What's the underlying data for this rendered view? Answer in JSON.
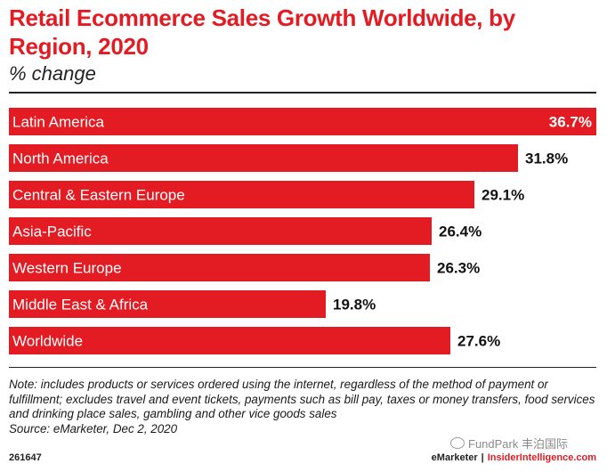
{
  "title": "Retail Ecommerce Sales Growth Worldwide, by Region, 2020",
  "subtitle": "% change",
  "colors": {
    "accent": "#e31b23"
  },
  "chart_data": {
    "type": "bar",
    "orientation": "horizontal",
    "categories": [
      "Latin America",
      "North America",
      "Central & Eastern Europe",
      "Asia-Pacific",
      "Western Europe",
      "Middle East & Africa",
      "Worldwide"
    ],
    "values": [
      36.7,
      31.8,
      29.1,
      26.4,
      26.3,
      19.8,
      27.6
    ],
    "value_labels": [
      "36.7%",
      "31.8%",
      "29.1%",
      "26.4%",
      "26.3%",
      "19.8%",
      "27.6%"
    ],
    "unit": "%",
    "xlim": [
      0,
      36.7
    ],
    "grid": false,
    "legend": "none"
  },
  "note": "Note: includes products or services ordered using the internet, regardless of the method of payment or fulfillment; excludes travel and event tickets, payments such as bill pay, taxes or money transfers, food services and drinking place sales, gambling and other vice goods sales",
  "source": "Source: eMarketer, Dec 2, 2020",
  "chart_id": "261647",
  "watermark": "FundPark 丰泊国际",
  "brand": {
    "emarketer": "eMarketer",
    "separator": "|",
    "insider": "InsiderIntelligence.com"
  }
}
